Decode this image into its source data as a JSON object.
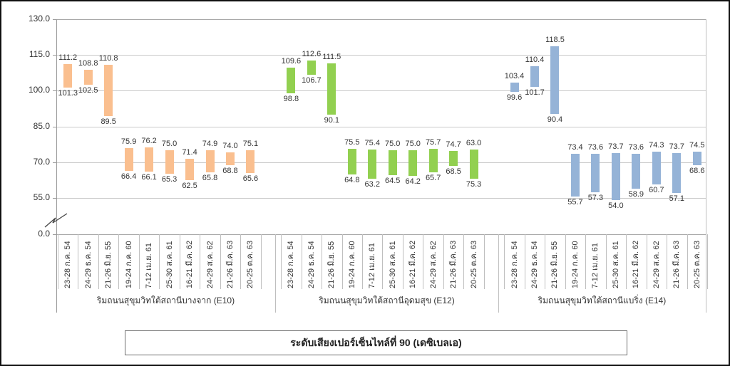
{
  "title_box": {
    "text": "ระดับเสียงเปอร์เซ็นไทล์ที่ 90 (เดซิเบลเอ)"
  },
  "chart_data": {
    "type": "bar",
    "subtype": "floating-range-bars",
    "title": "ระดับเสียงเปอร์เซ็นไทล์ที่ 90 (เดซิเบลเอ)",
    "ylabel": "",
    "xlabel": "",
    "y_ticks": [
      130,
      115,
      100,
      85,
      70,
      55,
      0
    ],
    "ylim": [
      0,
      130
    ],
    "axis_break_between": [
      0,
      55
    ],
    "grid": true,
    "legend": "none",
    "categories": [
      "23-28 ก.ค. 54",
      "24-29 ธ.ค. 54",
      "21-26 มิ.ย. 55",
      "19-24 ก.ค. 60",
      "7-12 เม.ย. 61",
      "25-30 ส.ค. 61",
      "16-21 มี.ค. 62",
      "24-29 ส.ค. 62",
      "21-26 มี.ค. 63",
      "20-25 ต.ค. 63"
    ],
    "groups": [
      {
        "name": "ริมถนนสุขุมวิทใต้สถานีบางจาก (E10)",
        "color": "#FABF8F",
        "bars": [
          {
            "above": 111.2,
            "below": 101.3
          },
          {
            "above": 108.8,
            "below": 102.5
          },
          {
            "above": 110.8,
            "below": 89.5
          },
          {
            "above": 75.9,
            "below": 66.4
          },
          {
            "above": 76.2,
            "below": 66.1
          },
          {
            "above": 75.0,
            "below": 65.3
          },
          {
            "above": 71.4,
            "below": 62.5
          },
          {
            "above": 74.9,
            "below": 65.8
          },
          {
            "above": 74.0,
            "below": 68.8
          },
          {
            "above": 75.1,
            "below": 65.6
          }
        ]
      },
      {
        "name": "ริมถนนสุขุมวิทใต้สถานีอุดมสุข (E12)",
        "color": "#92D050",
        "bars": [
          {
            "above": 109.6,
            "below": 98.8
          },
          {
            "above": 112.6,
            "below": 106.7
          },
          {
            "above": 111.5,
            "below": 90.1
          },
          {
            "above": 75.5,
            "below": 64.8
          },
          {
            "above": 75.4,
            "below": 63.2
          },
          {
            "above": 75.0,
            "below": 64.5
          },
          {
            "above": 75.0,
            "below": 64.2
          },
          {
            "above": 75.7,
            "below": 65.7
          },
          {
            "above": 74.7,
            "below": 68.5
          },
          {
            "above": 63.0,
            "below": 75.3
          }
        ]
      },
      {
        "name": "ริมถนนสุขุมวิทใต้สถานีแบริ่ง (E14)",
        "color": "#95B3D7",
        "bars": [
          {
            "above": 103.4,
            "below": 99.6
          },
          {
            "above": 110.4,
            "below": 101.7
          },
          {
            "above": 118.5,
            "below": 90.4
          },
          {
            "above": 73.4,
            "below": 55.7
          },
          {
            "above": 73.6,
            "below": 57.3
          },
          {
            "above": 73.7,
            "below": 54.0
          },
          {
            "above": 73.6,
            "below": 58.9
          },
          {
            "above": 74.3,
            "below": 60.7
          },
          {
            "above": 73.7,
            "below": 57.1
          },
          {
            "above": 74.5,
            "below": 68.6
          }
        ]
      }
    ]
  }
}
